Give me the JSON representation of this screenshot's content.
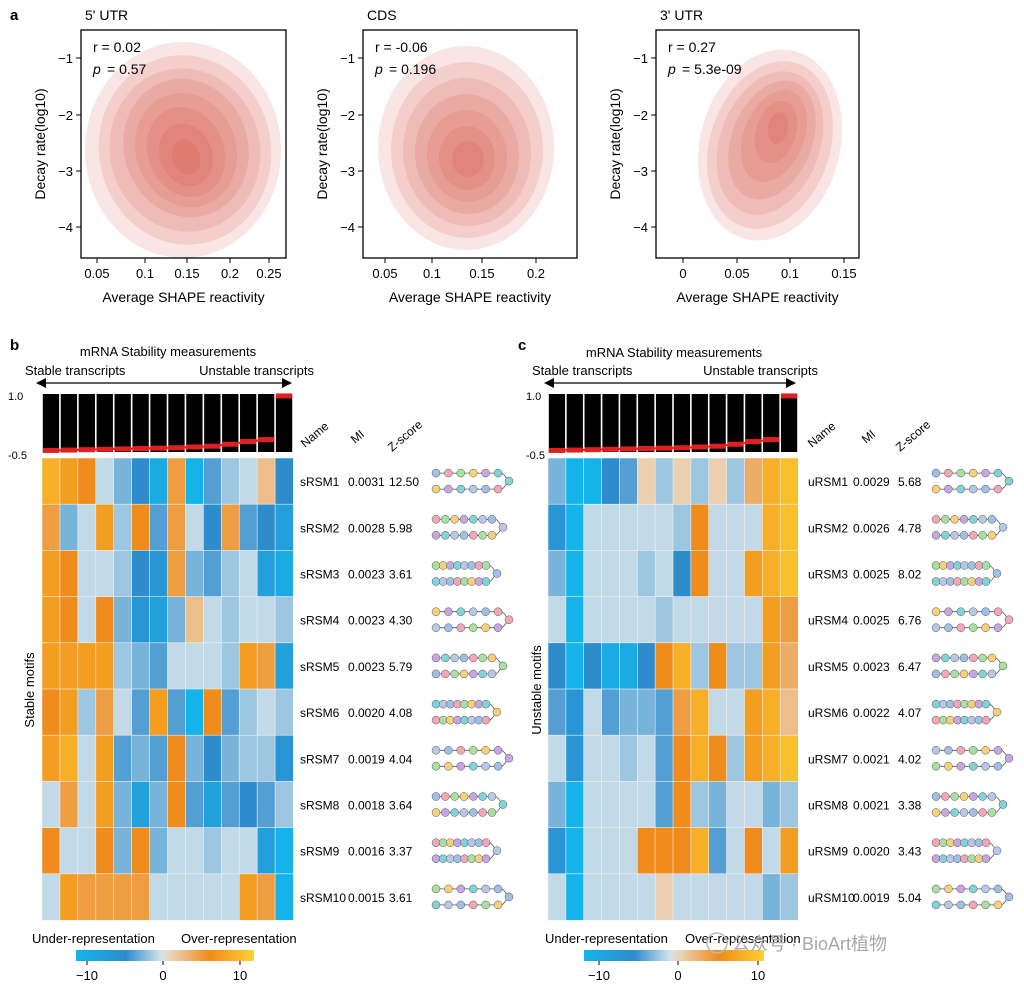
{
  "panel_letters": {
    "a": "a",
    "b": "b",
    "c": "c"
  },
  "panel_a": {
    "ylabel": "Decay rate(log10)",
    "xlabel": "Average SHAPE reactivity",
    "plots": [
      {
        "title": "5' UTR",
        "r_text": "r = 0.02",
        "p_label": "p",
        "p_value": "= 0.57",
        "yticks": [
          "−1",
          "−2",
          "−3",
          "−4"
        ],
        "xticks": [
          "0.05",
          "0.1",
          "0.15",
          "0.2",
          "0.25"
        ]
      },
      {
        "title": "CDS",
        "r_text": "r = -0.06",
        "p_label": "p",
        "p_value": "= 0.196",
        "yticks": [
          "−1",
          "−2",
          "−3",
          "−4"
        ],
        "xticks": [
          "0.05",
          "0.1",
          "0.15",
          "0.2"
        ]
      },
      {
        "title": "3' UTR",
        "r_text": "r = 0.27",
        "p_label": "p",
        "p_value": "= 5.3e-09",
        "yticks": [
          "−1",
          "−2",
          "−3",
          "−4"
        ],
        "xticks": [
          "0",
          "0.05",
          "0.1",
          "0.15"
        ]
      }
    ]
  },
  "panel_b": {
    "title": "mRNA Stability measurements",
    "stable_label": "Stable transcripts",
    "unstable_label": "Unstable transcripts",
    "bar_top": "1.0",
    "bar_bottom": "-0.5",
    "col_headers": {
      "name": "Name",
      "mi": "MI",
      "z": "Z-score"
    },
    "side_label": "Stable motifs",
    "rows": [
      {
        "name": "sRSM1",
        "mi": "0.0031",
        "z": "12.50"
      },
      {
        "name": "sRSM2",
        "mi": "0.0028",
        "z": "5.98"
      },
      {
        "name": "sRSM3",
        "mi": "0.0023",
        "z": "3.61"
      },
      {
        "name": "sRSM4",
        "mi": "0.0023",
        "z": "4.30"
      },
      {
        "name": "sRSM5",
        "mi": "0.0023",
        "z": "5.79"
      },
      {
        "name": "sRSM6",
        "mi": "0.0020",
        "z": "4.08"
      },
      {
        "name": "sRSM7",
        "mi": "0.0019",
        "z": "4.04"
      },
      {
        "name": "sRSM8",
        "mi": "0.0018",
        "z": "3.64"
      },
      {
        "name": "sRSM9",
        "mi": "0.0016",
        "z": "3.37"
      },
      {
        "name": "sRSM10",
        "mi": "0.0015",
        "z": "3.61"
      }
    ],
    "legend": {
      "under": "Under-representation",
      "over": "Over-representation",
      "ticks": [
        "−10",
        "0",
        "10"
      ]
    }
  },
  "panel_c": {
    "title": "mRNA Stability measurements",
    "stable_label": "Stable transcripts",
    "unstable_label": "Unstable transcripts",
    "bar_top": "1.0",
    "bar_bottom": "-0.5",
    "col_headers": {
      "name": "Name",
      "mi": "MI",
      "z": "Z-score"
    },
    "side_label": "Unstable motifs",
    "rows": [
      {
        "name": "uRSM1",
        "mi": "0.0029",
        "z": "5.68"
      },
      {
        "name": "uRSM2",
        "mi": "0.0026",
        "z": "4.78"
      },
      {
        "name": "uRSM3",
        "mi": "0.0025",
        "z": "8.02"
      },
      {
        "name": "uRSM4",
        "mi": "0.0025",
        "z": "6.76"
      },
      {
        "name": "uRSM5",
        "mi": "0.0023",
        "z": "6.47"
      },
      {
        "name": "uRSM6",
        "mi": "0.0022",
        "z": "4.07"
      },
      {
        "name": "uRSM7",
        "mi": "0.0021",
        "z": "4.02"
      },
      {
        "name": "uRSM8",
        "mi": "0.0021",
        "z": "3.38"
      },
      {
        "name": "uRSM9",
        "mi": "0.0020",
        "z": "3.43"
      },
      {
        "name": "uRSM10",
        "mi": "0.0019",
        "z": "5.04"
      }
    ],
    "legend": {
      "under": "Under-representation",
      "over": "Over-representation",
      "ticks": [
        "−10",
        "0",
        "10"
      ]
    }
  },
  "watermark": "公众号 · BioArt植物",
  "colors": {
    "density": "#d24a3c",
    "bar": "#000000",
    "trend": "#e02020",
    "low": "#14b4ea",
    "high": "#f6a21c",
    "mid": "#d4e3ec"
  },
  "chart_data": [
    {
      "type": "heatmap",
      "title": "5' UTR",
      "xlabel": "Average SHAPE reactivity",
      "ylabel": "Decay rate(log10)",
      "xlim": [
        0.02,
        0.28
      ],
      "ylim": [
        -4.4,
        -0.5
      ],
      "r": 0.02,
      "p": 0.57,
      "density_peak": [
        0.155,
        -2.8
      ],
      "density_extent": {
        "x": [
          0.06,
          0.27
        ],
        "y": [
          -4.0,
          -1.3
        ]
      }
    },
    {
      "type": "heatmap",
      "title": "CDS",
      "xlabel": "Average SHAPE reactivity",
      "ylabel": "Decay rate(log10)",
      "xlim": [
        0.02,
        0.24
      ],
      "ylim": [
        -4.4,
        -0.5
      ],
      "r": -0.06,
      "p": 0.196,
      "density_peak": [
        0.14,
        -2.85
      ],
      "density_extent": {
        "x": [
          0.07,
          0.21
        ],
        "y": [
          -3.9,
          -1.4
        ]
      }
    },
    {
      "type": "heatmap",
      "title": "3' UTR",
      "xlabel": "Average SHAPE reactivity",
      "ylabel": "Decay rate(log10)",
      "xlim": [
        -0.03,
        0.18
      ],
      "ylim": [
        -4.4,
        -0.5
      ],
      "r": 0.27,
      "p": 5.3e-09,
      "density_peak": [
        0.095,
        -2.25
      ],
      "density_extent": {
        "x": [
          0.03,
          0.13
        ],
        "y": [
          -3.8,
          -1.2
        ]
      }
    },
    {
      "type": "heatmap",
      "title": "Stable motifs",
      "color_scale": [
        -10,
        10
      ],
      "stability_bar_values": [
        -0.46,
        -0.45,
        -0.44,
        -0.43,
        -0.42,
        -0.41,
        -0.4,
        -0.39,
        -0.37,
        -0.35,
        -0.3,
        -0.23,
        -0.18,
        0.95
      ],
      "matrix": [
        [
          8,
          7,
          6,
          -2,
          -4,
          -6,
          -9,
          5,
          -10,
          -5,
          -3,
          -2,
          3,
          -6
        ],
        [
          5,
          -4,
          -2,
          7,
          -3,
          6,
          -5,
          5,
          -2,
          -6,
          5,
          -5,
          -6,
          -8
        ],
        [
          7,
          6,
          -2,
          -2,
          -3,
          -6,
          -7,
          5,
          -4,
          -5,
          -3,
          -2,
          -8,
          -9
        ],
        [
          7,
          6,
          -2,
          6,
          -4,
          -7,
          -8,
          -4,
          3,
          -2,
          -3,
          -2,
          -2,
          -3
        ],
        [
          7,
          7,
          7,
          7,
          -3,
          -4,
          -5,
          -2,
          -2,
          -2,
          -3,
          7,
          5,
          -8
        ],
        [
          6,
          7,
          -3,
          5,
          -2,
          -5,
          7,
          -5,
          -10,
          6,
          -5,
          -3,
          -2,
          -3
        ],
        [
          7,
          8,
          -2,
          7,
          -5,
          -4,
          -5,
          6,
          -4,
          -6,
          -4,
          -3,
          -3,
          -7
        ],
        [
          -2,
          5,
          -2,
          7,
          -4,
          -8,
          -4,
          6,
          -5,
          -8,
          -5,
          -6,
          -5,
          -3
        ],
        [
          6,
          -2,
          -2,
          6,
          -4,
          6,
          -4,
          -2,
          -2,
          -3,
          -2,
          -2,
          -8,
          -10
        ],
        [
          -2,
          7,
          5,
          5,
          5,
          5,
          -2,
          -2,
          -2,
          -2,
          -2,
          7,
          5,
          -10
        ]
      ]
    },
    {
      "type": "heatmap",
      "title": "Unstable motifs",
      "color_scale": [
        -10,
        10
      ],
      "stability_bar_values": [
        -0.46,
        -0.45,
        -0.44,
        -0.43,
        -0.42,
        -0.41,
        -0.4,
        -0.39,
        -0.37,
        -0.35,
        -0.3,
        -0.23,
        -0.18,
        0.95
      ],
      "matrix": [
        [
          -4,
          -10,
          -10,
          -6,
          -5,
          2,
          -3,
          2,
          -3,
          2,
          -3,
          4,
          8,
          9
        ],
        [
          -7,
          -10,
          -2,
          -2,
          -2,
          -2,
          -2,
          -3,
          6,
          -2,
          -2,
          -2,
          8,
          9
        ],
        [
          -4,
          -10,
          -2,
          -2,
          -2,
          -3,
          -2,
          -6,
          6,
          -2,
          -2,
          7,
          8,
          9
        ],
        [
          -2,
          -10,
          -2,
          -2,
          -2,
          -2,
          -3,
          -2,
          -2,
          -2,
          -2,
          -2,
          7,
          5
        ],
        [
          -6,
          -10,
          -6,
          -9,
          -9,
          -6,
          6,
          8,
          -3,
          6,
          -3,
          -3,
          7,
          4
        ],
        [
          -5,
          -7,
          -2,
          -5,
          -4,
          -4,
          -5,
          5,
          8,
          -2,
          -2,
          7,
          8,
          3
        ],
        [
          -2,
          -7,
          -2,
          -2,
          -3,
          -2,
          -5,
          6,
          8,
          6,
          -3,
          7,
          8,
          9
        ],
        [
          -4,
          -10,
          -2,
          -2,
          -2,
          -2,
          -5,
          6,
          -3,
          -4,
          -2,
          -2,
          -4,
          -3
        ],
        [
          -7,
          -10,
          -2,
          -2,
          -2,
          6,
          6,
          6,
          8,
          -5,
          -2,
          6,
          -2,
          7
        ],
        [
          -2,
          -10,
          -2,
          -2,
          -2,
          -2,
          2,
          -2,
          -2,
          -2,
          -2,
          -2,
          -4,
          -3
        ]
      ]
    }
  ]
}
